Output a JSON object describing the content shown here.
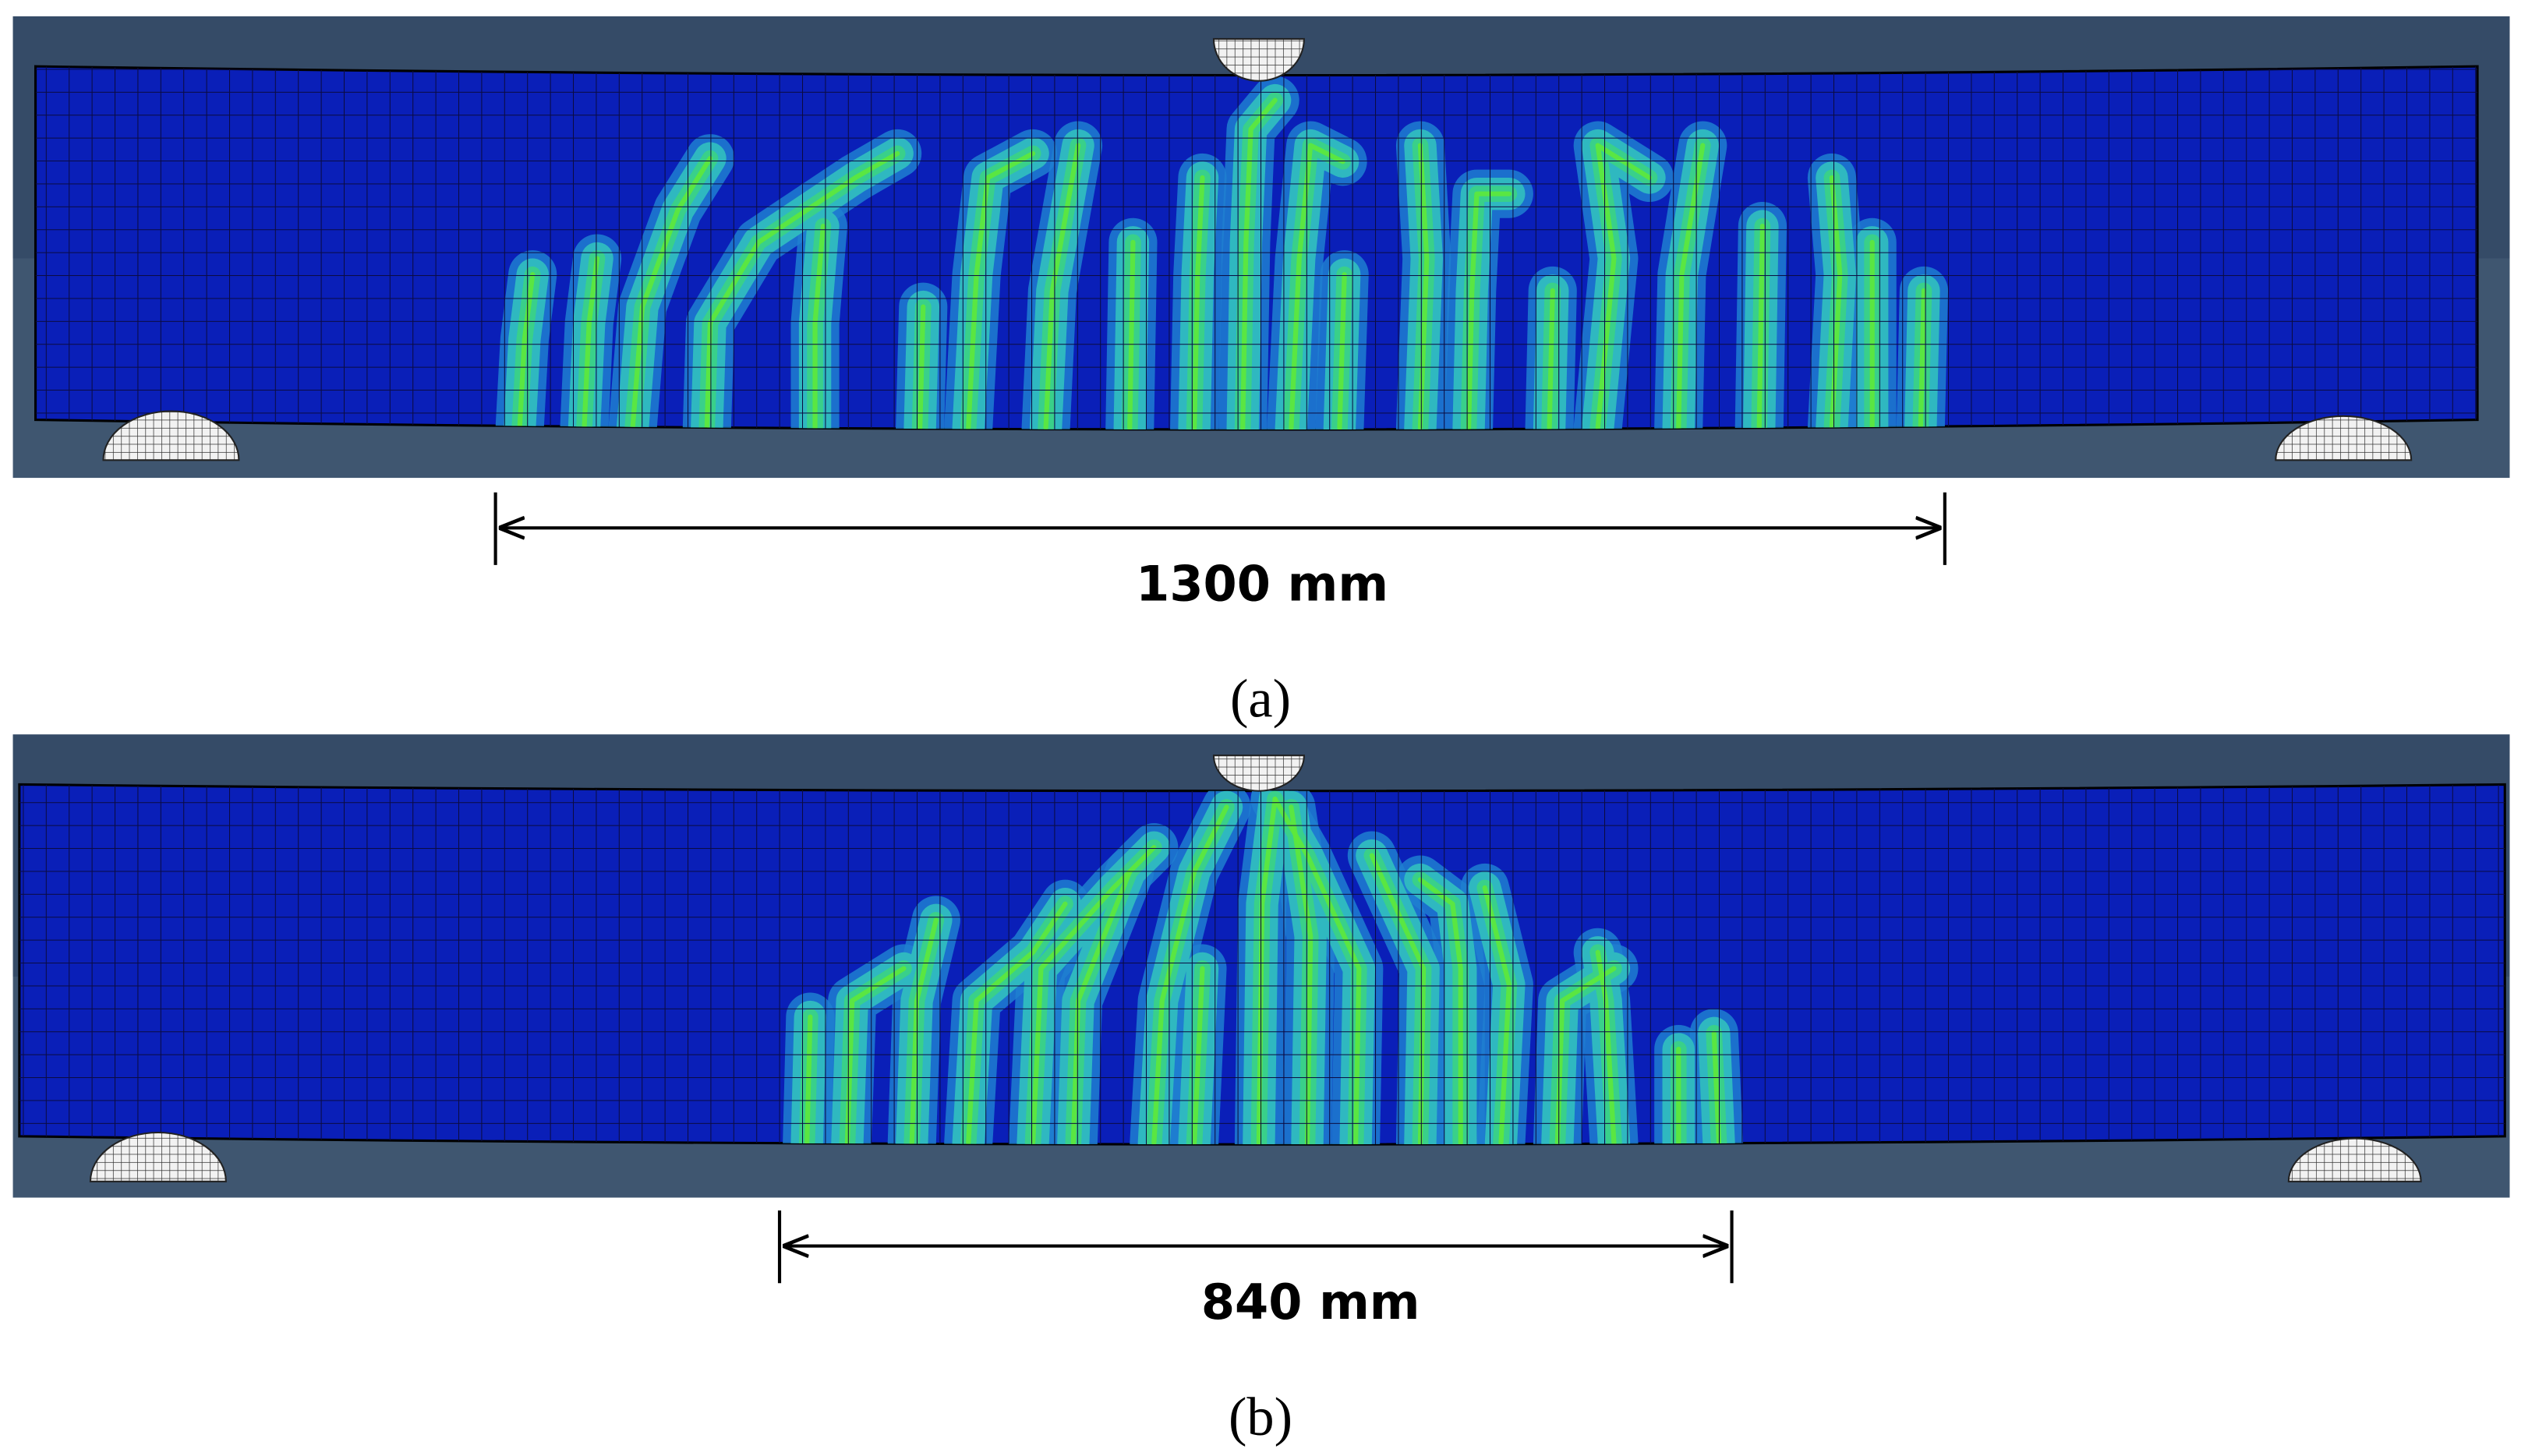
{
  "panels": [
    {
      "dimension": "1300 mm",
      "caption": "(a)"
    },
    {
      "dimension": "840 mm",
      "caption": "(b)"
    }
  ]
}
